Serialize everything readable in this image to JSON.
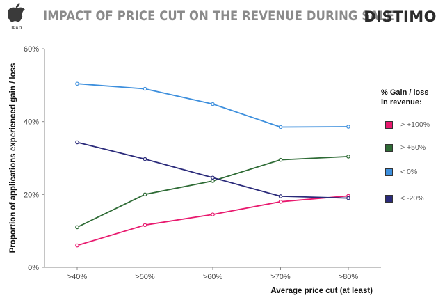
{
  "header": {
    "platform": "IPAD",
    "title": "IMPACT OF PRICE CUT ON THE REVENUE DURING SALE",
    "brand": "DISTIMO"
  },
  "legend": {
    "title_line1": "% Gain / loss",
    "title_line2": "in revenue:"
  },
  "chart_data": {
    "type": "line",
    "xlabel": "Average price cut (at least)",
    "ylabel": "Proportion of applications experienced gain / loss",
    "categories": [
      ">40%",
      ">50%",
      ">60%",
      ">70%",
      ">80%"
    ],
    "ylim": [
      0,
      60
    ],
    "yticks": [
      "0%",
      "20%",
      "40%",
      "60%"
    ],
    "grid": false,
    "legend_position": "right",
    "series": [
      {
        "name": "> +100%",
        "color": "#e8196e",
        "values": [
          6.0,
          11.6,
          14.5,
          18.0,
          19.6
        ]
      },
      {
        "name": "> +50%",
        "color": "#2e6b35",
        "values": [
          11.0,
          20.0,
          23.7,
          29.5,
          30.4
        ]
      },
      {
        "name": "< 0%",
        "color": "#3d8fdd",
        "values": [
          50.4,
          49.0,
          44.8,
          38.5,
          38.6
        ]
      },
      {
        "name": "< -20%",
        "color": "#2a2a7a",
        "values": [
          34.3,
          29.7,
          24.6,
          19.5,
          19.0
        ]
      }
    ]
  }
}
